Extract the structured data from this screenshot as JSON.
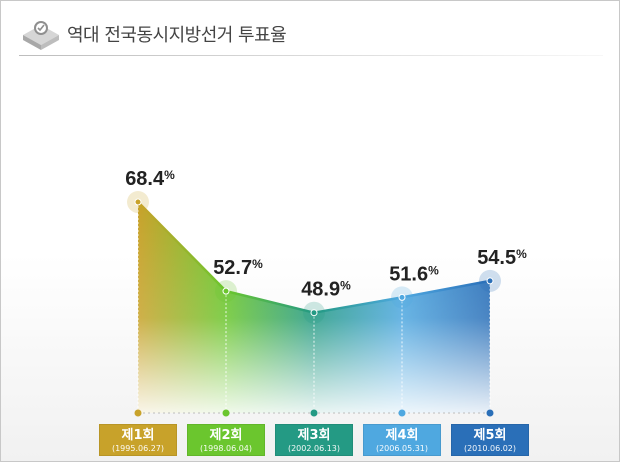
{
  "header": {
    "title": "역대 전국동시지방선거 투표율"
  },
  "chart_data": {
    "type": "area",
    "title": "역대 전국동시지방선거 투표율",
    "categories": [
      "제1회",
      "제2회",
      "제3회",
      "제4회",
      "제5회"
    ],
    "dates": [
      "(1995.06.27)",
      "(1998.06.04)",
      "(2002.06.13)",
      "(2006.05.31)",
      "(2010.06.02)"
    ],
    "series": [
      {
        "values": [
          68.4,
          52.7,
          48.9,
          51.6,
          54.5
        ]
      }
    ],
    "value_labels": [
      "68.4",
      "52.7",
      "48.9",
      "51.6",
      "54.5"
    ],
    "unit": "%",
    "ylim": [
      0,
      80
    ],
    "grid": false,
    "legend": "none",
    "colors": [
      "#c8a22a",
      "#6bc62e",
      "#249a84",
      "#4fa8e0",
      "#2a6fb8"
    ]
  }
}
